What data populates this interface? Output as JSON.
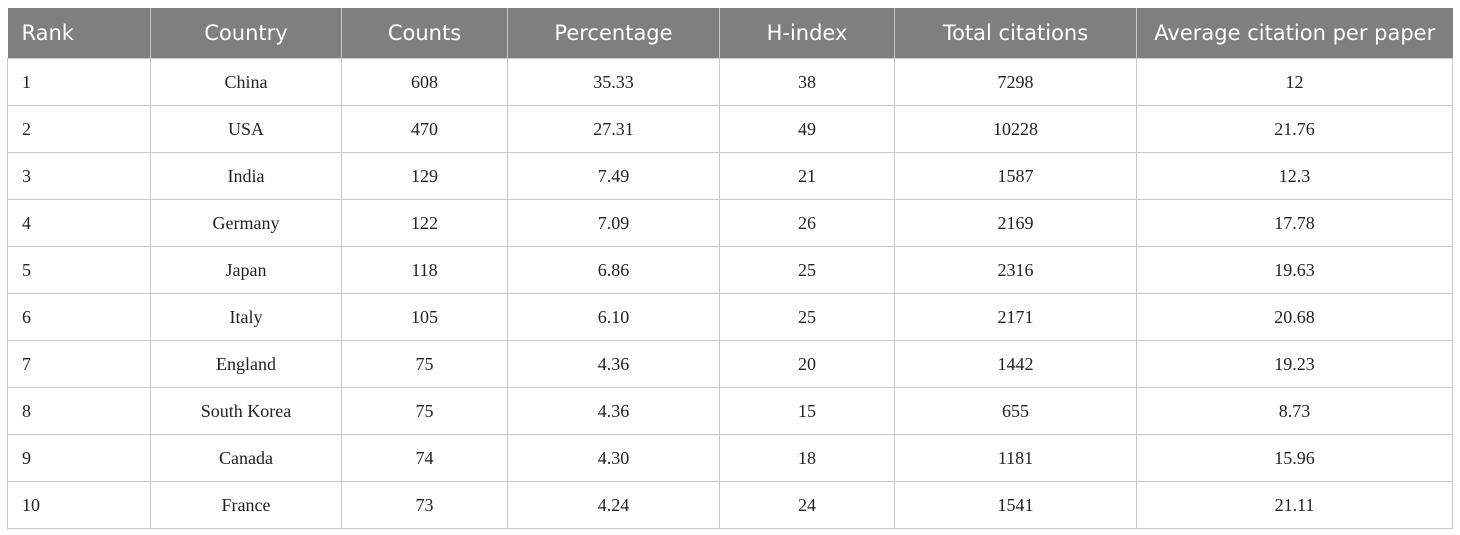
{
  "table": {
    "header": [
      "Rank",
      "Country",
      "Counts",
      "Percentage",
      "H-index",
      "Total citations",
      "Average citation per paper"
    ],
    "rows": [
      [
        "1",
        "China",
        "608",
        "35.33",
        "38",
        "7298",
        "12"
      ],
      [
        "2",
        "USA",
        "470",
        "27.31",
        "49",
        "10228",
        "21.76"
      ],
      [
        "3",
        "India",
        "129",
        "7.49",
        "21",
        "1587",
        "12.3"
      ],
      [
        "4",
        "Germany",
        "122",
        "7.09",
        "26",
        "2169",
        "17.78"
      ],
      [
        "5",
        "Japan",
        "118",
        "6.86",
        "25",
        "2316",
        "19.63"
      ],
      [
        "6",
        "Italy",
        "105",
        "6.10",
        "25",
        "2171",
        "20.68"
      ],
      [
        "7",
        "England",
        "75",
        "4.36",
        "20",
        "1442",
        "19.23"
      ],
      [
        "8",
        "South Korea",
        "75",
        "4.36",
        "15",
        "655",
        "8.73"
      ],
      [
        "9",
        "Canada",
        "74",
        "4.30",
        "18",
        "1181",
        "15.96"
      ],
      [
        "10",
        "France",
        "73",
        "4.24",
        "24",
        "1541",
        "21.11"
      ]
    ]
  }
}
